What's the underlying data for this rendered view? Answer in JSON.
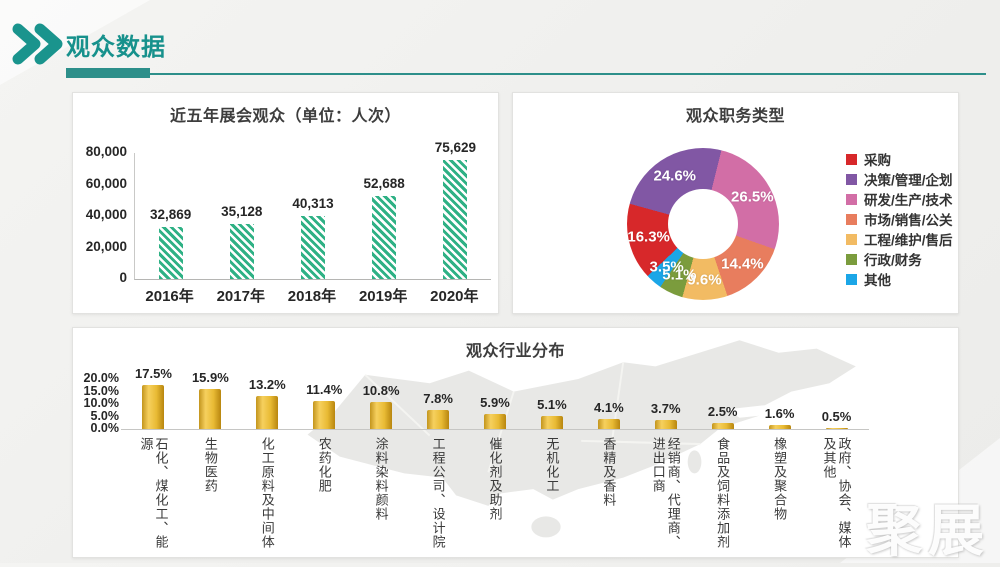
{
  "header": {
    "title": "观众数据"
  },
  "watermark": "聚展",
  "colors": {
    "accent_teal": "#17918c",
    "bar_green": "#2fb185",
    "bar_gold": "#e3ac27",
    "page_bg": "#efefed",
    "panel_bg": "#ffffff"
  },
  "chart_data": [
    {
      "type": "bar",
      "title": "近五年展会观众（单位：人次）",
      "categories": [
        "2016年",
        "2017年",
        "2018年",
        "2019年",
        "2020年"
      ],
      "values": [
        32869,
        35128,
        40313,
        52688,
        75629
      ],
      "labels": [
        "32,869",
        "35,128",
        "40,313",
        "52,688",
        "75,629"
      ],
      "yticks": [
        "80,000",
        "60,000",
        "40,000",
        "20,000",
        "0"
      ],
      "ylim": [
        0,
        80000
      ],
      "xlabel": "",
      "ylabel": "",
      "grid": false,
      "bar_style": "green-hatched",
      "legend_position": "none"
    },
    {
      "type": "pie",
      "title": "观众职务类型",
      "donut": true,
      "legend_position": "right",
      "items": [
        {
          "label": "采购",
          "value": 16.3,
          "display": "16.3%",
          "color": "#d7282a"
        },
        {
          "label": "决策/管理/企划",
          "value": 24.6,
          "display": "24.6%",
          "color": "#8157a4"
        },
        {
          "label": "研发/生产/技术",
          "value": 26.5,
          "display": "26.5%",
          "color": "#d26ea6"
        },
        {
          "label": "市场/销售/公关",
          "value": 14.4,
          "display": "14.4%",
          "color": "#e87d5e"
        },
        {
          "label": "工程/维护/售后",
          "value": 9.6,
          "display": "9.6%",
          "color": "#f2bb63"
        },
        {
          "label": "行政/财务",
          "value": 5.1,
          "display": "5.1%",
          "color": "#7b9c3d"
        },
        {
          "label": "其他",
          "value": 3.5,
          "display": "3.5%",
          "color": "#1ba6e7"
        }
      ],
      "slice_order": [
        2,
        3,
        4,
        5,
        6,
        0,
        1
      ],
      "start_angle_deg": 14
    },
    {
      "type": "bar",
      "title": "观众行业分布",
      "categories": [
        "石化、煤化工、能源",
        "生物医药",
        "化工原料及中间体",
        "农药化肥",
        "涂料染料颜料",
        "工程公司、设计院",
        "催化剂及助剂",
        "无机化工",
        "香精及香料",
        "经销商、代理商、进出口商",
        "食品及饲料添加剂",
        "橡塑及聚合物",
        "政府、协会、媒体及其他"
      ],
      "values": [
        17.5,
        15.9,
        13.2,
        11.4,
        10.8,
        7.8,
        5.9,
        5.1,
        4.1,
        3.7,
        2.5,
        1.6,
        0.5
      ],
      "labels": [
        "17.5%",
        "15.9%",
        "13.2%",
        "11.4%",
        "10.8%",
        "7.8%",
        "5.9%",
        "5.1%",
        "4.1%",
        "3.7%",
        "2.5%",
        "1.6%",
        "0.5%"
      ],
      "yticks": [
        "20.0%",
        "15.0%",
        "10.0%",
        "5.0%",
        "0.0%"
      ],
      "ylim": [
        0,
        20
      ],
      "xlabel": "",
      "ylabel": "",
      "grid": false,
      "bar_style": "gold-cylinder",
      "legend_position": "none"
    }
  ]
}
